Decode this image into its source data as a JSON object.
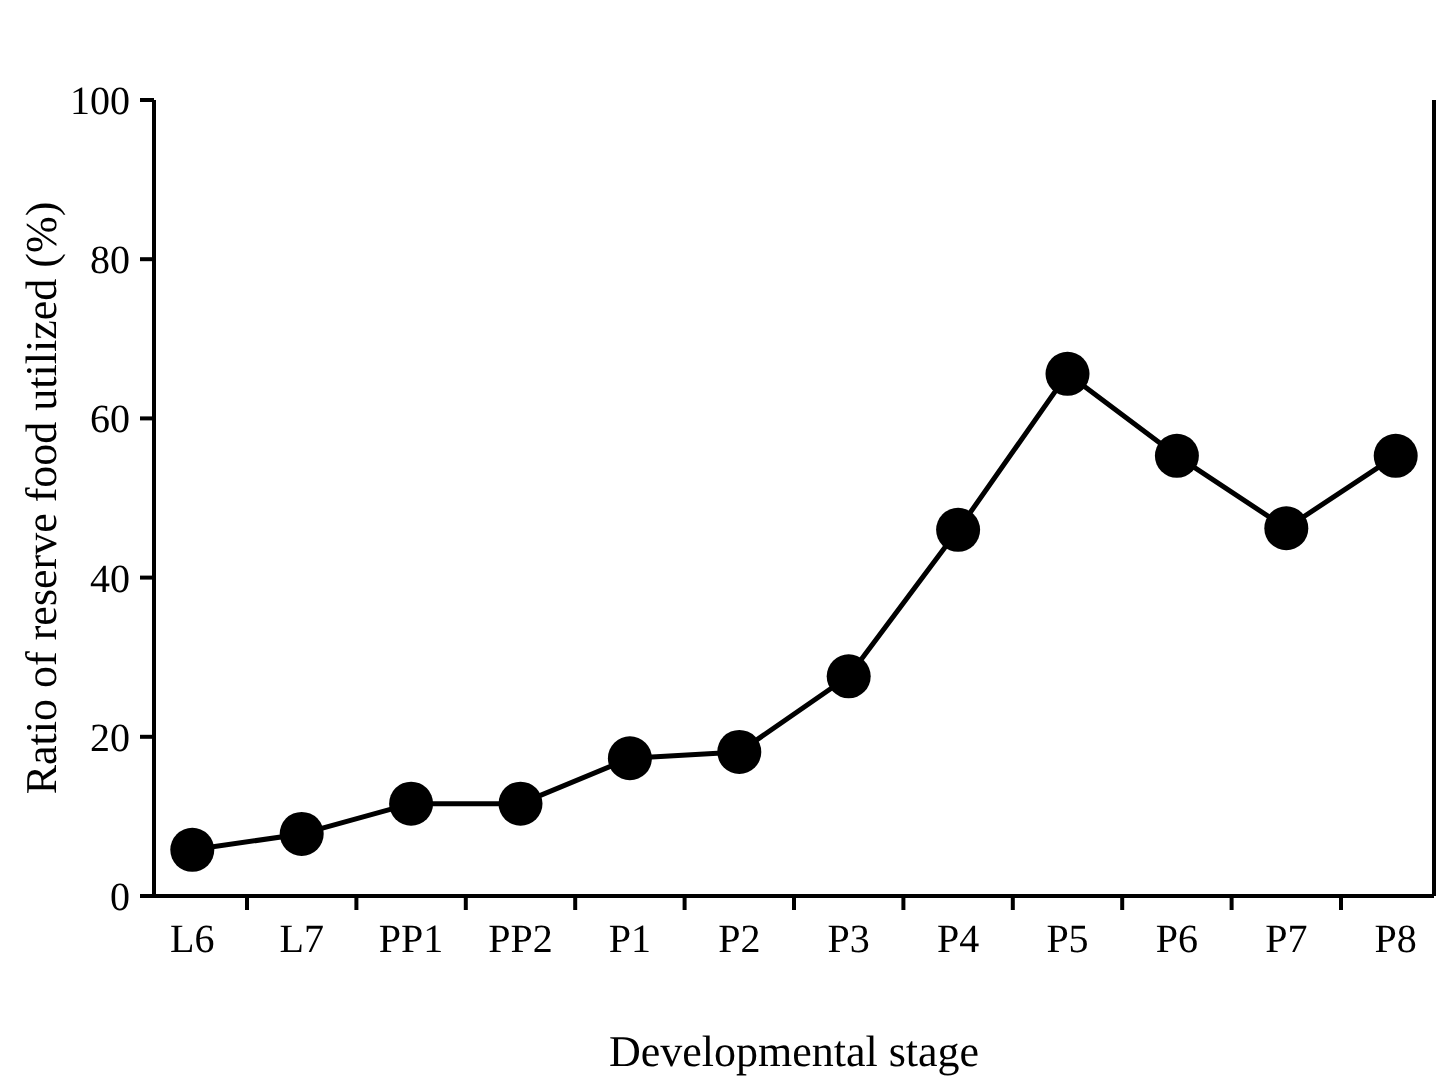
{
  "chart_data": {
    "type": "line",
    "xlabel": "Developmental stage",
    "ylabel": "Ratio of reserve food utilized (%)",
    "categories": [
      "L6",
      "L7",
      "PP1",
      "PP2",
      "P1",
      "P2",
      "P3",
      "P4",
      "P5",
      "P6",
      "P7",
      "P8"
    ],
    "values": [
      5.8,
      7.8,
      11.6,
      11.6,
      17.3,
      18.1,
      27.6,
      46,
      65.6,
      55.3,
      46.2,
      55.3
    ],
    "color": "#000000",
    "marker": "circle",
    "line_style": "solid",
    "ylim": [
      0,
      100
    ],
    "yticks": [
      0,
      20,
      40,
      60,
      80,
      100
    ],
    "grid": false
  }
}
